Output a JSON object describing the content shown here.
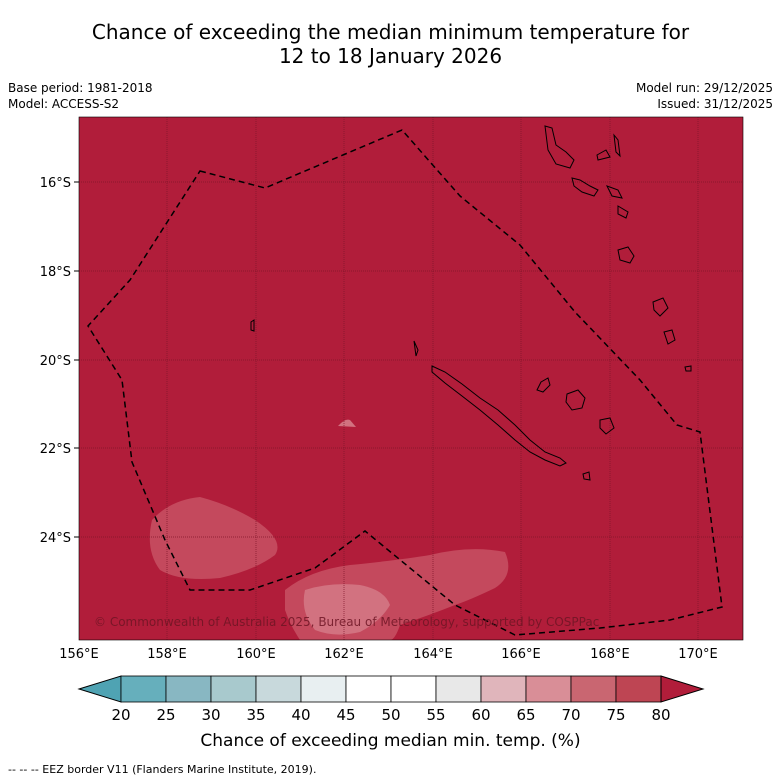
{
  "title_line1": "Chance of exceeding the median minimum temperature for",
  "title_line2": "12 to 18 January 2026",
  "meta_left": {
    "base_period": "Base period: 1981-2018",
    "model": "Model: ACCESS-S2"
  },
  "meta_right": {
    "model_run": "Model run: 29/12/2025",
    "issued": "Issued: 31/12/2025"
  },
  "map": {
    "lon_ticks": [
      "156°E",
      "158°E",
      "160°E",
      "162°E",
      "164°E",
      "166°E",
      "168°E",
      "170°E"
    ],
    "lat_ticks": [
      "16°S",
      "18°S",
      "20°S",
      "22°S",
      "24°S"
    ],
    "copyright": "© Commonwealth of Australia 2025, Bureau of Meteorology, supported by COSPPac",
    "background_color": "#b11d3a"
  },
  "colorbar": {
    "labels": [
      "20",
      "25",
      "30",
      "35",
      "40",
      "45",
      "50",
      "55",
      "60",
      "65",
      "70",
      "75",
      "80"
    ],
    "colors": [
      "#66afbc",
      "#88b7c2",
      "#a8c9cd",
      "#c8d9dc",
      "#e8eff1",
      "#ffffff",
      "#ffffff",
      "#e8e8e8",
      "#e0b5bb",
      "#d98e97",
      "#c96671",
      "#be4553"
    ],
    "low_extend_color": "#4fa3b3",
    "high_extend_color": "#b11d3a",
    "title": "Chance of exceeding median min. temp. (%)"
  },
  "footer": "--  --  -- EEZ border V11 (Flanders Marine Institute, 2019)."
}
